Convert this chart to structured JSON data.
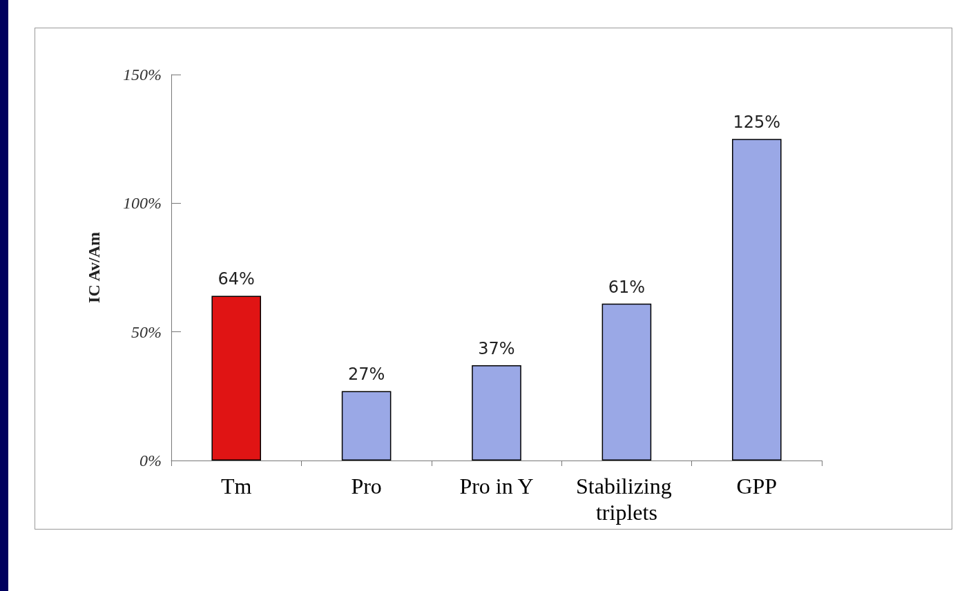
{
  "chart_data": {
    "type": "bar",
    "ylabel": "IC Av/Am",
    "categories": [
      "Tm",
      "Pro",
      "Pro in Y",
      "Stabilizing triplets",
      "GPP"
    ],
    "values": [
      64,
      27,
      37,
      61,
      125
    ],
    "colors": [
      "#e01414",
      "#9aa8e6",
      "#9aa8e6",
      "#9aa8e6",
      "#9aa8e6"
    ],
    "value_labels": [
      "64%",
      "27%",
      "37%",
      "61%",
      "125%"
    ],
    "ylim": [
      0,
      150
    ],
    "yticks": [
      {
        "value": 0,
        "label": "0%"
      },
      {
        "value": 50,
        "label": "50%"
      },
      {
        "value": 100,
        "label": "100%"
      },
      {
        "value": 150,
        "label": "150%"
      }
    ],
    "grid": false
  }
}
